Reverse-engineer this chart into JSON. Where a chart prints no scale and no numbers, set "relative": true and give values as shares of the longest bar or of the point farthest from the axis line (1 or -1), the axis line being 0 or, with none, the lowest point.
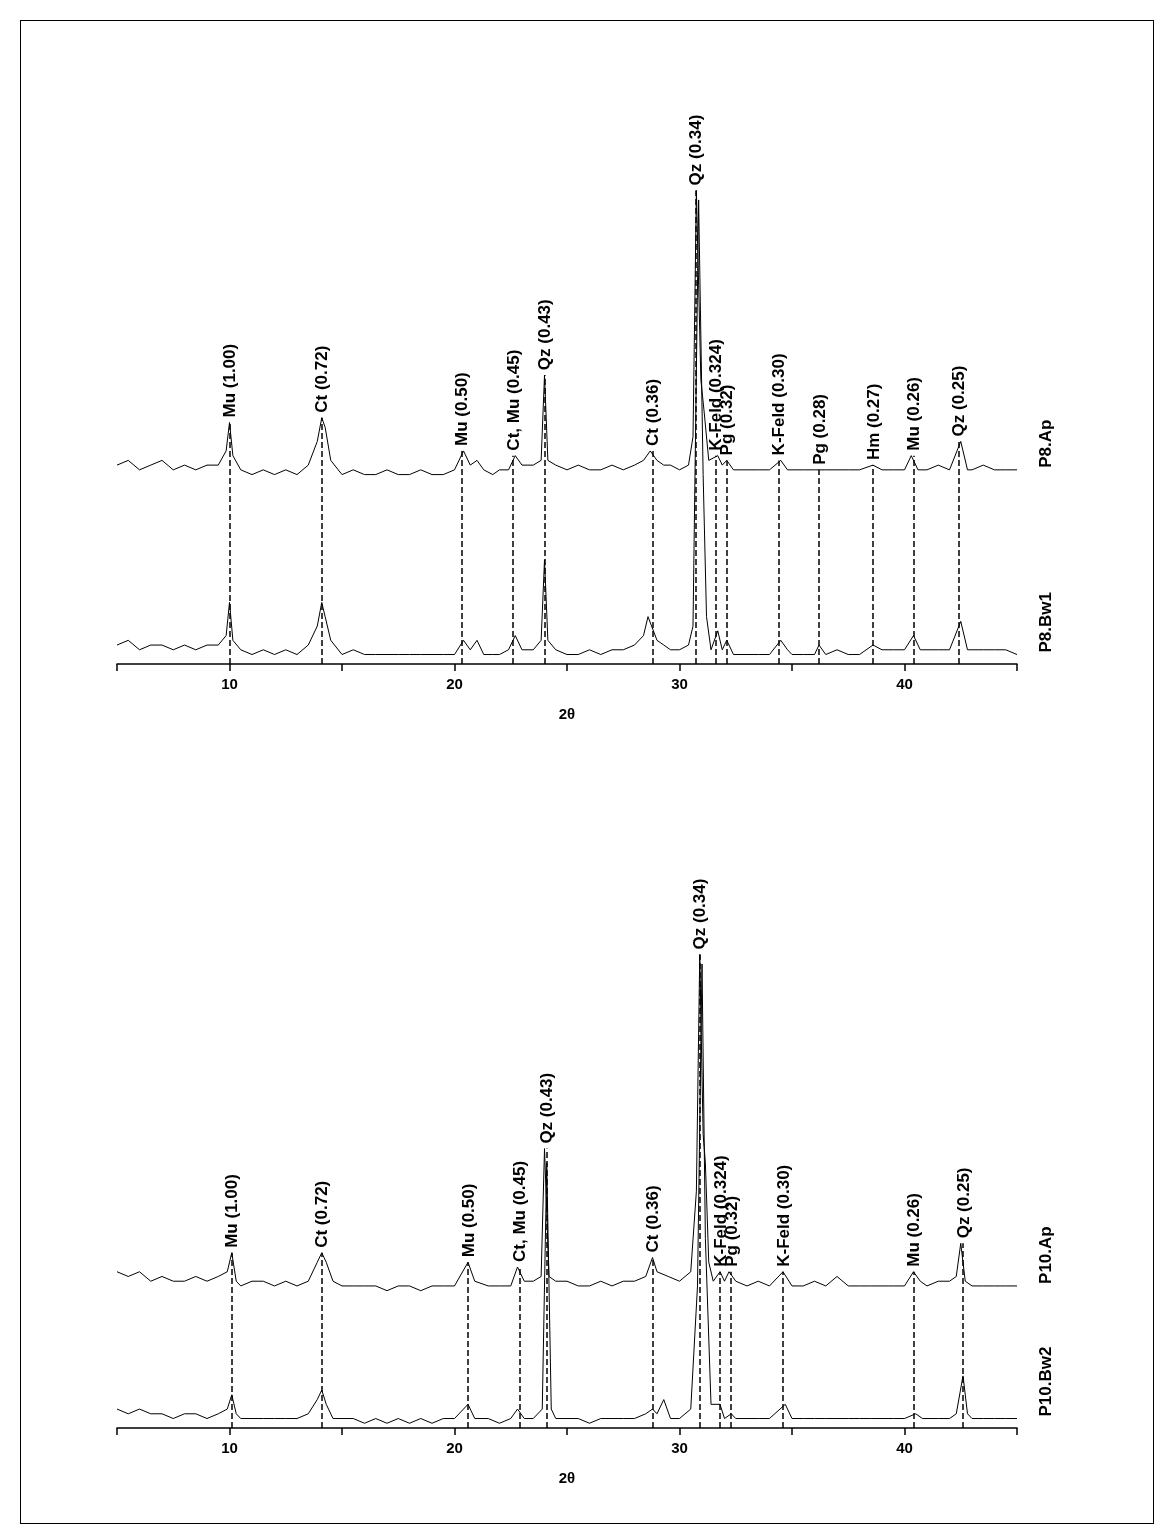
{
  "chart_data": [
    {
      "type": "line",
      "relative": true,
      "xlabel": "2θ",
      "xlim": [
        5,
        45
      ],
      "xticks": [
        {
          "value": 5,
          "label": null
        },
        10,
        {
          "value": 15,
          "label": null
        },
        20,
        {
          "value": 25,
          "label": null
        },
        30,
        {
          "value": 35,
          "label": null
        },
        40,
        {
          "value": 45,
          "label": null
        }
      ],
      "tick_labels": "x",
      "grid": false,
      "legend": false,
      "marker": "none",
      "line_style": "solid",
      "series": [
        {
          "name": "P8.Ap",
          "color": "#000000",
          "x": [
            5,
            5.5,
            6,
            6.5,
            7,
            7.5,
            8,
            8.5,
            9,
            9.5,
            9.85,
            10,
            10.15,
            10.5,
            11,
            11.5,
            12,
            12.5,
            13,
            13.5,
            13.9,
            14.1,
            14.25,
            14.5,
            15,
            15.5,
            16,
            16.5,
            17,
            17.5,
            18,
            18.5,
            19,
            19.5,
            20,
            20.4,
            20.7,
            21,
            21.3,
            21.7,
            22,
            22.4,
            22.7,
            23,
            23.5,
            23.85,
            24,
            24.15,
            24.5,
            25,
            25.5,
            26,
            26.5,
            27,
            27.5,
            28,
            28.4,
            28.7,
            29,
            29.3,
            29.6,
            30,
            30.4,
            30.6,
            30.75,
            30.95,
            31.1,
            31.3,
            31.7,
            31.9,
            32.1,
            32.4,
            33,
            33.5,
            34,
            34.5,
            34.8,
            35,
            35.5,
            36,
            36.2,
            36.5,
            37,
            37.5,
            38,
            38.6,
            39,
            39.5,
            40,
            40.3,
            40.6,
            41,
            41.5,
            42,
            42.5,
            42.8,
            43,
            43.5,
            44,
            44.5,
            45
          ],
          "values": [
            0.42,
            0.43,
            0.41,
            0.42,
            0.43,
            0.41,
            0.42,
            0.41,
            0.42,
            0.42,
            0.45,
            0.51,
            0.44,
            0.41,
            0.4,
            0.41,
            0.4,
            0.41,
            0.4,
            0.42,
            0.47,
            0.52,
            0.5,
            0.43,
            0.4,
            0.41,
            0.4,
            0.4,
            0.41,
            0.4,
            0.4,
            0.41,
            0.4,
            0.4,
            0.41,
            0.45,
            0.42,
            0.43,
            0.41,
            0.4,
            0.41,
            0.41,
            0.44,
            0.42,
            0.42,
            0.43,
            0.61,
            0.43,
            0.42,
            0.41,
            0.42,
            0.41,
            0.41,
            0.42,
            0.41,
            0.42,
            0.43,
            0.45,
            0.43,
            0.42,
            0.42,
            0.41,
            0.42,
            0.48,
            1.0,
            0.6,
            0.53,
            0.43,
            0.44,
            0.42,
            0.43,
            0.41,
            0.41,
            0.41,
            0.41,
            0.43,
            0.41,
            0.41,
            0.41,
            0.41,
            0.41,
            0.41,
            0.41,
            0.41,
            0.41,
            0.42,
            0.41,
            0.41,
            0.41,
            0.44,
            0.41,
            0.41,
            0.42,
            0.41,
            0.47,
            0.41,
            0.41,
            0.42,
            0.41,
            0.41,
            0.41
          ]
        },
        {
          "name": "P8.Bw1",
          "color": "#000000",
          "x": [
            5,
            5.5,
            6,
            6.5,
            7,
            7.5,
            8,
            8.5,
            9,
            9.5,
            9.85,
            10,
            10.15,
            10.5,
            11,
            11.5,
            12,
            12.5,
            13,
            13.5,
            13.9,
            14.1,
            14.25,
            14.5,
            15,
            15.5,
            16,
            16.5,
            17,
            17.5,
            18,
            18.5,
            19,
            19.5,
            20,
            20.4,
            20.7,
            21,
            21.3,
            21.7,
            22,
            22.4,
            22.7,
            23,
            23.5,
            23.85,
            24,
            24.15,
            24.5,
            25,
            25.5,
            26,
            26.5,
            27,
            27.5,
            28,
            28.4,
            28.6,
            29,
            29.3,
            29.6,
            30,
            30.4,
            30.6,
            30.85,
            31.05,
            31.2,
            31.4,
            31.7,
            31.9,
            32.1,
            32.4,
            33,
            33.5,
            34,
            34.5,
            34.8,
            35,
            35.5,
            36,
            36.2,
            36.5,
            37,
            37.5,
            38,
            38.6,
            39,
            39.5,
            40,
            40.4,
            40.7,
            41,
            41.5,
            42,
            42.5,
            42.8,
            43,
            43.5,
            44,
            44.5,
            45
          ],
          "values": [
            0.04,
            0.05,
            0.03,
            0.04,
            0.04,
            0.03,
            0.04,
            0.03,
            0.04,
            0.04,
            0.06,
            0.13,
            0.05,
            0.03,
            0.02,
            0.03,
            0.02,
            0.03,
            0.02,
            0.04,
            0.08,
            0.13,
            0.1,
            0.05,
            0.02,
            0.03,
            0.02,
            0.02,
            0.02,
            0.02,
            0.02,
            0.02,
            0.02,
            0.02,
            0.02,
            0.05,
            0.03,
            0.05,
            0.02,
            0.02,
            0.02,
            0.03,
            0.06,
            0.03,
            0.03,
            0.05,
            0.22,
            0.05,
            0.03,
            0.02,
            0.02,
            0.03,
            0.02,
            0.03,
            0.03,
            0.04,
            0.06,
            0.1,
            0.05,
            0.04,
            0.03,
            0.03,
            0.04,
            0.08,
            0.98,
            0.4,
            0.1,
            0.03,
            0.07,
            0.03,
            0.05,
            0.02,
            0.02,
            0.02,
            0.02,
            0.05,
            0.03,
            0.02,
            0.02,
            0.02,
            0.04,
            0.02,
            0.03,
            0.02,
            0.02,
            0.04,
            0.03,
            0.03,
            0.03,
            0.06,
            0.03,
            0.03,
            0.03,
            0.03,
            0.09,
            0.03,
            0.03,
            0.03,
            0.03,
            0.03,
            0.02
          ]
        }
      ],
      "ref_lines": [
        {
          "axis": "x",
          "value": 10.0,
          "label": "Mu (1.00)",
          "line_style": "dashed"
        },
        {
          "axis": "x",
          "value": 14.1,
          "label": "Ct (0.72)",
          "line_style": "dashed"
        },
        {
          "axis": "x",
          "value": 20.3,
          "label": "Mu (0.50)",
          "line_style": "dashed"
        },
        {
          "axis": "x",
          "value": 22.6,
          "label": "Ct, Mu (0.45)",
          "line_style": "dashed"
        },
        {
          "axis": "x",
          "value": 24.0,
          "label": "Qz (0.43)",
          "line_style": "dashed"
        },
        {
          "axis": "x",
          "value": 28.8,
          "label": "Ct (0.36)",
          "line_style": "dashed"
        },
        {
          "axis": "x",
          "value": 30.7,
          "label": "Qz (0.34)",
          "line_style": "dashed"
        },
        {
          "axis": "x",
          "value": 31.6,
          "label": "K-Feld (0.324)",
          "line_style": "dashed"
        },
        {
          "axis": "x",
          "value": 32.1,
          "label": "Pg (0.32)",
          "line_style": "dashed"
        },
        {
          "axis": "x",
          "value": 34.4,
          "label": "K-Feld (0.30)",
          "line_style": "dashed"
        },
        {
          "axis": "x",
          "value": 36.2,
          "label": "Pg (0.28)",
          "line_style": "dashed"
        },
        {
          "axis": "x",
          "value": 38.6,
          "label": "Hm (0.27)",
          "line_style": "dashed"
        },
        {
          "axis": "x",
          "value": 40.4,
          "label": "Mu (0.26)",
          "line_style": "dashed"
        },
        {
          "axis": "x",
          "value": 42.4,
          "label": "Qz (0.25)",
          "line_style": "dashed"
        }
      ]
    },
    {
      "type": "line",
      "relative": true,
      "xlabel": "2θ",
      "xlim": [
        5,
        45
      ],
      "xticks": [
        {
          "value": 5,
          "label": null
        },
        10,
        {
          "value": 15,
          "label": null
        },
        20,
        {
          "value": 25,
          "label": null
        },
        30,
        {
          "value": 35,
          "label": null
        },
        40,
        {
          "value": 45,
          "label": null
        }
      ],
      "tick_labels": "x",
      "grid": false,
      "legend": false,
      "marker": "none",
      "line_style": "solid",
      "series": [
        {
          "name": "P10.Ap",
          "color": "#000000",
          "x": [
            5,
            5.5,
            6,
            6.5,
            7,
            7.5,
            8,
            8.5,
            9,
            9.5,
            9.9,
            10.1,
            10.3,
            10.5,
            11,
            11.5,
            12,
            12.5,
            13,
            13.5,
            13.9,
            14.1,
            14.3,
            14.6,
            15,
            15.5,
            16,
            16.5,
            17,
            17.5,
            18,
            18.5,
            19,
            19.5,
            20,
            20.6,
            20.9,
            21.5,
            22,
            22.5,
            22.8,
            23.1,
            23.5,
            23.85,
            24,
            24.2,
            24.5,
            25,
            25.5,
            26,
            26.5,
            27,
            27.5,
            28,
            28.5,
            28.8,
            29,
            29.5,
            30,
            30.5,
            30.75,
            30.9,
            31.05,
            31.15,
            31.3,
            31.5,
            31.8,
            32,
            32.2,
            32.5,
            33,
            33.5,
            34,
            34.6,
            35,
            35.5,
            36,
            36.5,
            37,
            37.5,
            38,
            38.5,
            39,
            39.5,
            40,
            40.4,
            40.7,
            41,
            41.5,
            42,
            42.3,
            42.5,
            42.7,
            43,
            43.5,
            44,
            44.5,
            45
          ],
          "values": [
            0.33,
            0.32,
            0.33,
            0.31,
            0.32,
            0.31,
            0.31,
            0.32,
            0.31,
            0.32,
            0.33,
            0.37,
            0.31,
            0.3,
            0.31,
            0.31,
            0.3,
            0.31,
            0.3,
            0.31,
            0.35,
            0.37,
            0.35,
            0.31,
            0.3,
            0.3,
            0.3,
            0.3,
            0.29,
            0.3,
            0.3,
            0.29,
            0.3,
            0.3,
            0.3,
            0.35,
            0.31,
            0.3,
            0.3,
            0.3,
            0.34,
            0.31,
            0.31,
            0.32,
            0.59,
            0.32,
            0.31,
            0.31,
            0.3,
            0.3,
            0.31,
            0.3,
            0.31,
            0.31,
            0.32,
            0.36,
            0.33,
            0.32,
            0.31,
            0.33,
            0.5,
            1.0,
            0.62,
            0.56,
            0.35,
            0.31,
            0.33,
            0.31,
            0.33,
            0.31,
            0.3,
            0.31,
            0.3,
            0.33,
            0.3,
            0.3,
            0.31,
            0.3,
            0.32,
            0.3,
            0.3,
            0.3,
            0.3,
            0.3,
            0.3,
            0.33,
            0.31,
            0.3,
            0.31,
            0.31,
            0.32,
            0.39,
            0.31,
            0.3,
            0.3,
            0.3,
            0.3,
            0.3
          ]
        },
        {
          "name": "P10.Bw2",
          "color": "#000000",
          "x": [
            5,
            5.5,
            6,
            6.5,
            7,
            7.5,
            8,
            8.5,
            9,
            9.5,
            9.9,
            10.1,
            10.3,
            10.5,
            11,
            11.5,
            12,
            12.5,
            13,
            13.5,
            13.9,
            14.1,
            14.3,
            14.6,
            15,
            15.5,
            16,
            16.5,
            17,
            17.5,
            18,
            18.5,
            19,
            19.5,
            20,
            20.6,
            20.9,
            21.5,
            22,
            22.5,
            22.8,
            23.1,
            23.5,
            23.9,
            24.1,
            24.3,
            24.5,
            25,
            25.5,
            26,
            26.5,
            27,
            27.5,
            28,
            28.5,
            28.8,
            29,
            29.3,
            29.6,
            30,
            30.5,
            30.8,
            31,
            31.15,
            31.4,
            31.8,
            32,
            32.3,
            32.5,
            33,
            33.5,
            34,
            34.7,
            35,
            35.5,
            36,
            36.5,
            37,
            37.5,
            38,
            38.5,
            39,
            39.5,
            40,
            40.5,
            40.8,
            41,
            41.5,
            42,
            42.3,
            42.6,
            42.8,
            43,
            43.5,
            44,
            44.5,
            45
          ],
          "values": [
            0.04,
            0.03,
            0.04,
            0.03,
            0.03,
            0.02,
            0.03,
            0.03,
            0.02,
            0.03,
            0.04,
            0.07,
            0.03,
            0.02,
            0.02,
            0.02,
            0.02,
            0.02,
            0.02,
            0.03,
            0.06,
            0.08,
            0.05,
            0.02,
            0.02,
            0.02,
            0.01,
            0.02,
            0.01,
            0.02,
            0.01,
            0.02,
            0.01,
            0.02,
            0.02,
            0.05,
            0.02,
            0.02,
            0.01,
            0.02,
            0.04,
            0.02,
            0.02,
            0.04,
            0.56,
            0.04,
            0.02,
            0.02,
            0.02,
            0.01,
            0.02,
            0.02,
            0.02,
            0.02,
            0.03,
            0.04,
            0.03,
            0.06,
            0.02,
            0.02,
            0.04,
            0.3,
            0.98,
            0.4,
            0.05,
            0.05,
            0.02,
            0.03,
            0.02,
            0.02,
            0.02,
            0.02,
            0.05,
            0.02,
            0.02,
            0.02,
            0.02,
            0.02,
            0.02,
            0.02,
            0.02,
            0.02,
            0.02,
            0.02,
            0.03,
            0.02,
            0.02,
            0.02,
            0.02,
            0.03,
            0.11,
            0.03,
            0.02,
            0.02,
            0.02,
            0.02,
            0.02
          ]
        }
      ],
      "ref_lines": [
        {
          "axis": "x",
          "value": 10.1,
          "label": "Mu (1.00)",
          "line_style": "dashed"
        },
        {
          "axis": "x",
          "value": 14.1,
          "label": "Ct (0.72)",
          "line_style": "dashed"
        },
        {
          "axis": "x",
          "value": 20.6,
          "label": "Mu (0.50)",
          "line_style": "dashed"
        },
        {
          "axis": "x",
          "value": 22.9,
          "label": "Ct, Mu (0.45)",
          "line_style": "dashed"
        },
        {
          "axis": "x",
          "value": 24.1,
          "label": "Qz (0.43)",
          "line_style": "dashed"
        },
        {
          "axis": "x",
          "value": 28.8,
          "label": "Ct (0.36)",
          "line_style": "dashed"
        },
        {
          "axis": "x",
          "value": 30.9,
          "label": "Qz (0.34)",
          "line_style": "dashed"
        },
        {
          "axis": "x",
          "value": 31.8,
          "label": "K-Feld (0.324)",
          "line_style": "dashed"
        },
        {
          "axis": "x",
          "value": 32.3,
          "label": "Pg (0.32)",
          "line_style": "dashed"
        },
        {
          "axis": "x",
          "value": 34.6,
          "label": "K-Feld (0.30)",
          "line_style": "dashed"
        },
        {
          "axis": "x",
          "value": 40.4,
          "label": "Mu (0.26)",
          "line_style": "dashed"
        },
        {
          "axis": "x",
          "value": 42.6,
          "label": "Qz (0.25)",
          "line_style": "dashed"
        }
      ]
    }
  ]
}
